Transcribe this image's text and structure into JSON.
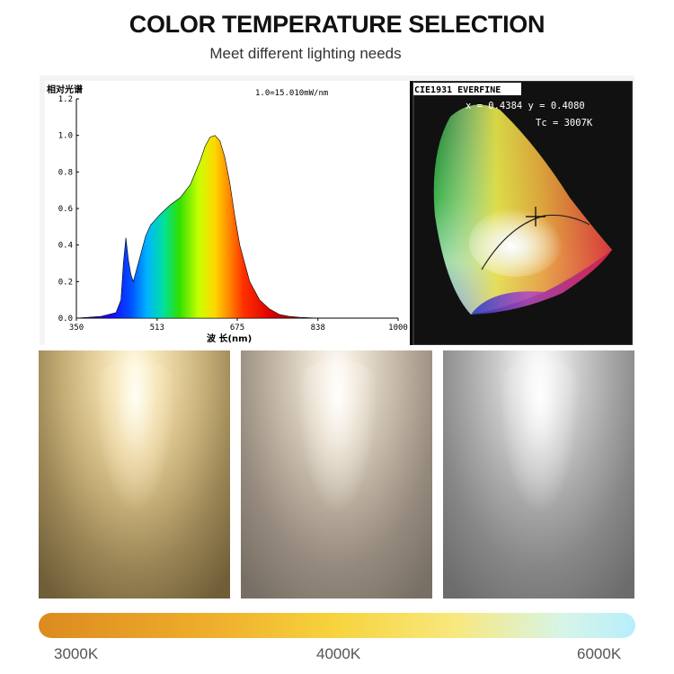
{
  "header": {
    "title": "COLOR TEMPERATURE SELECTION",
    "subtitle": "Meet different lighting needs"
  },
  "spectrum": {
    "ylabel": "相对光谱",
    "scale_note": "1.0=15.010mW/nm",
    "xlabel": "波  长(nm)",
    "y_ticks": [
      "0.0",
      "0.2",
      "0.4",
      "0.6",
      "0.8",
      "1.0",
      "1.2"
    ],
    "x_ticks": [
      "350",
      "513",
      "675",
      "838",
      "1000"
    ]
  },
  "cie": {
    "label": "CIE1931 EVERFINE",
    "xy": "x = 0.4384  y = 0.4080",
    "tc": "Tc = 3007K"
  },
  "temperature_scale": {
    "labels": [
      "3000K",
      "4000K",
      "6000K"
    ]
  },
  "chart_data": {
    "type": "area",
    "xlabel": "波  长(nm)",
    "ylabel": "相对光谱",
    "xlim": [
      350,
      1000
    ],
    "ylim": [
      0,
      1.2
    ],
    "x": [
      350,
      400,
      430,
      440,
      445,
      450,
      455,
      460,
      465,
      470,
      480,
      490,
      500,
      520,
      540,
      560,
      580,
      600,
      610,
      620,
      630,
      640,
      650,
      660,
      670,
      680,
      700,
      720,
      740,
      760,
      780,
      800,
      838,
      900,
      1000
    ],
    "values": [
      0.0,
      0.01,
      0.03,
      0.1,
      0.3,
      0.44,
      0.32,
      0.24,
      0.2,
      0.25,
      0.35,
      0.45,
      0.51,
      0.57,
      0.62,
      0.66,
      0.73,
      0.86,
      0.94,
      0.99,
      1.0,
      0.97,
      0.88,
      0.74,
      0.56,
      0.4,
      0.2,
      0.1,
      0.05,
      0.02,
      0.01,
      0.005,
      0.0,
      0.0,
      0.0
    ]
  }
}
